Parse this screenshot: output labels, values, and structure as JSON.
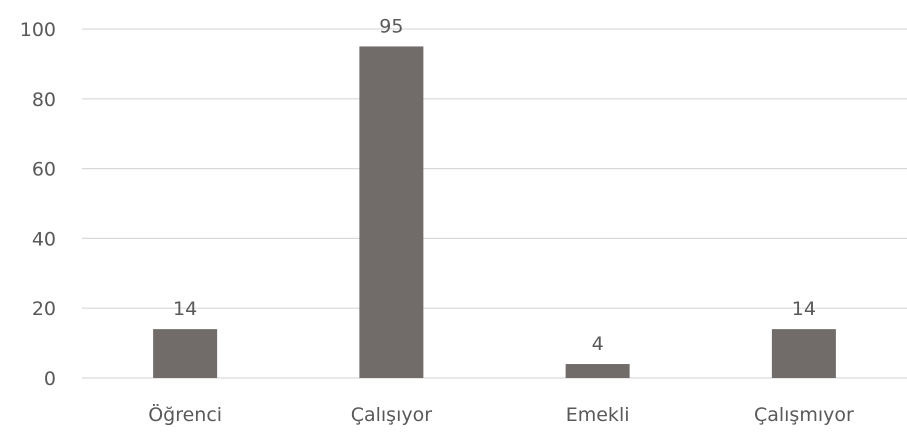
{
  "chart_data": {
    "type": "bar",
    "categories": [
      "Öğrenci",
      "Çalışıyor",
      "Emekli",
      "Çalışmıyor"
    ],
    "values": [
      14,
      95,
      4,
      14
    ],
    "data_labels": [
      "14",
      "95",
      "4",
      "14"
    ],
    "ylim": [
      0,
      100
    ],
    "yticks": [
      0,
      20,
      40,
      60,
      80,
      100
    ],
    "ytick_labels": [
      "0",
      "20",
      "40",
      "60",
      "80",
      "100"
    ],
    "title": "",
    "xlabel": "",
    "ylabel": "",
    "grid": "horizontal",
    "legend": "none",
    "bar_color": "#716b69",
    "grid_color": "#d9d9d9",
    "text_color": "#595959"
  }
}
